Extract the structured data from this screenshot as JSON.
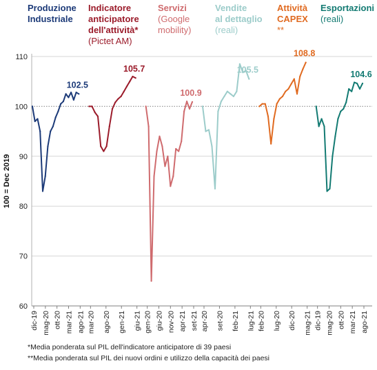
{
  "chart_data": {
    "type": "line",
    "ylabel": "100 = Dec 2019",
    "ylim": [
      60,
      110
    ],
    "yticks": [
      60,
      70,
      80,
      90,
      100,
      110
    ],
    "reference_line": 100,
    "series": [
      {
        "name_lines": [
          "Produzione",
          "Industriale"
        ],
        "sub_lines": [],
        "color": "#1c3a78",
        "end_label": "102.5",
        "xticks": [
          "dic-19",
          "mag-20",
          "ott-20",
          "mar-21",
          "ago-21"
        ],
        "values": [
          100,
          97,
          97.5,
          95,
          83,
          86,
          92,
          95,
          96,
          97.8,
          99,
          100.5,
          101,
          102.5,
          101.8,
          102.8,
          101.3,
          102.8,
          102.5
        ]
      },
      {
        "name_lines": [
          "Indicatore",
          "anticipatore",
          "dell'attività*"
        ],
        "sub_lines": [
          "(Pictet AM)"
        ],
        "color": "#9b1b2a",
        "end_label": "105.7",
        "xticks": [
          "mar-20",
          "ago-20",
          "gen-21",
          "giu-21"
        ],
        "values": [
          100,
          100,
          98.8,
          98,
          92,
          91,
          92,
          96,
          99.5,
          100.8,
          101.5,
          102,
          103,
          104,
          105,
          106,
          105.7
        ]
      },
      {
        "name_lines": [
          "Servizi"
        ],
        "sub_lines": [
          "(Google",
          "mobility)"
        ],
        "color": "#cf6b6e",
        "end_label": "100.9",
        "xticks": [
          "gen-20",
          "giu-20",
          "nov-20",
          "apr-21",
          "set-21"
        ],
        "values": [
          100,
          96,
          65,
          86,
          91,
          94,
          92,
          88,
          90,
          84,
          86,
          91.5,
          91,
          93,
          99,
          101,
          99.5,
          100.9
        ]
      },
      {
        "name_lines": [
          "Vendite",
          "al dettaglio"
        ],
        "sub_lines": [
          "(reali)"
        ],
        "color": "#9cccca",
        "end_label": "105.5",
        "xticks": [
          "apr-20",
          "set-20",
          "feb-21",
          "lug-21"
        ],
        "values": [
          100,
          95,
          95.3,
          92,
          83.5,
          99,
          101,
          102,
          103,
          102.5,
          102,
          103,
          108.5,
          106.8,
          107.2,
          105.5
        ]
      },
      {
        "name_lines": [
          "Attività",
          "CAPEX"
        ],
        "sub_lines": [
          "**"
        ],
        "color": "#e06a20",
        "end_label": "108.8",
        "xticks": [
          "feb-20",
          "lug-20",
          "dic-20",
          "mag-21"
        ],
        "values": [
          100,
          100.5,
          100.5,
          98,
          92.5,
          97.5,
          100.5,
          101.5,
          102,
          103,
          103.5,
          104.5,
          105.5,
          102.5,
          106,
          107.5,
          108.8
        ]
      },
      {
        "name_lines": [
          "Esportazioni"
        ],
        "sub_lines": [
          "(reali)"
        ],
        "color": "#127a72",
        "end_label": "104.6",
        "xticks": [
          "dic-19",
          "mag-20",
          "ott-20",
          "mar-21",
          "ago-21"
        ],
        "values": [
          100,
          96,
          97.5,
          96,
          83,
          83.5,
          90,
          94,
          97.5,
          99,
          99.5,
          100.8,
          103.5,
          103,
          104.8,
          104.6,
          103.5,
          104.6
        ]
      }
    ]
  },
  "footnotes": [
    "*Media ponderata sul PIL dell'indicatore anticipatore di 39 paesi",
    "**Media ponderata sul PIL dei nuovi ordini e utilizzo della capacità dei paesi"
  ]
}
